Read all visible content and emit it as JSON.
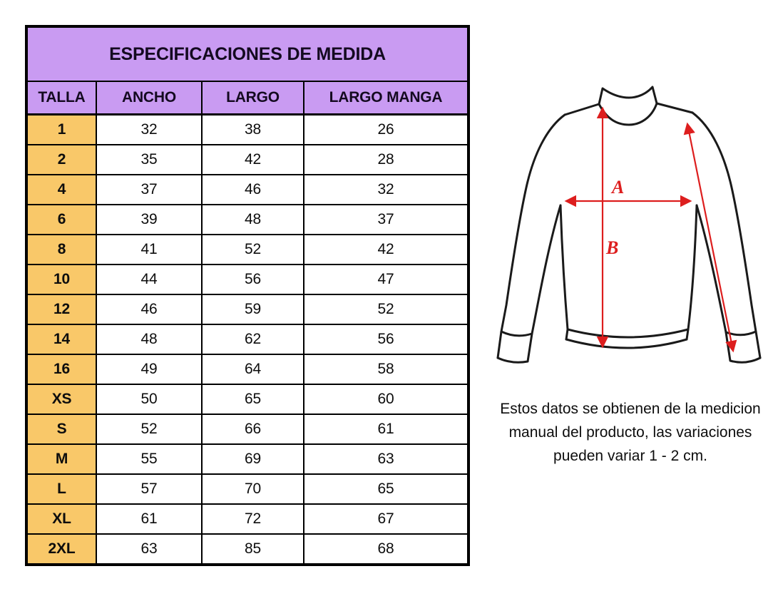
{
  "colors": {
    "header_purple": "#c99bf2",
    "size_column_orange": "#f9c869",
    "arrow_red": "#dd1e1e",
    "border_black": "#000000"
  },
  "table": {
    "title": "ESPECIFICACIONES DE MEDIDA",
    "headers": [
      "TALLA",
      "ANCHO",
      "LARGO",
      "LARGO MANGA"
    ],
    "rows": [
      {
        "talla": "1",
        "ancho": "32",
        "largo": "38",
        "manga": "26"
      },
      {
        "talla": "2",
        "ancho": "35",
        "largo": "42",
        "manga": "28"
      },
      {
        "talla": "4",
        "ancho": "37",
        "largo": "46",
        "manga": "32"
      },
      {
        "talla": "6",
        "ancho": "39",
        "largo": "48",
        "manga": "37"
      },
      {
        "talla": "8",
        "ancho": "41",
        "largo": "52",
        "manga": "42"
      },
      {
        "talla": "10",
        "ancho": "44",
        "largo": "56",
        "manga": "47"
      },
      {
        "talla": "12",
        "ancho": "46",
        "largo": "59",
        "manga": "52"
      },
      {
        "talla": "14",
        "ancho": "48",
        "largo": "62",
        "manga": "56"
      },
      {
        "talla": "16",
        "ancho": "49",
        "largo": "64",
        "manga": "58"
      },
      {
        "talla": "XS",
        "ancho": "50",
        "largo": "65",
        "manga": "60"
      },
      {
        "talla": "S",
        "ancho": "52",
        "largo": "66",
        "manga": "61"
      },
      {
        "talla": "M",
        "ancho": "55",
        "largo": "69",
        "manga": "63"
      },
      {
        "talla": "L",
        "ancho": "57",
        "largo": "70",
        "manga": "65"
      },
      {
        "talla": "XL",
        "ancho": "61",
        "largo": "72",
        "manga": "67"
      },
      {
        "talla": "2XL",
        "ancho": "63",
        "largo": "85",
        "manga": "68"
      }
    ]
  },
  "diagram": {
    "label_a": "A",
    "label_b": "B"
  },
  "note": {
    "lines": [
      "Estos datos se obtienen de la medicion",
      "manual del producto, las variaciones",
      "pueden variar 1 - 2 cm."
    ]
  },
  "chart_data": {
    "type": "table",
    "title": "ESPECIFICACIONES DE MEDIDA",
    "columns": [
      "TALLA",
      "ANCHO",
      "LARGO",
      "LARGO MANGA"
    ],
    "rows": [
      [
        "1",
        32,
        38,
        26
      ],
      [
        "2",
        35,
        42,
        28
      ],
      [
        "4",
        37,
        46,
        32
      ],
      [
        "6",
        39,
        48,
        37
      ],
      [
        "8",
        41,
        52,
        42
      ],
      [
        "10",
        44,
        56,
        47
      ],
      [
        "12",
        46,
        59,
        52
      ],
      [
        "14",
        48,
        62,
        56
      ],
      [
        "16",
        49,
        64,
        58
      ],
      [
        "XS",
        50,
        65,
        60
      ],
      [
        "S",
        52,
        66,
        61
      ],
      [
        "M",
        55,
        69,
        63
      ],
      [
        "L",
        57,
        70,
        65
      ],
      [
        "XL",
        61,
        72,
        67
      ],
      [
        "2XL",
        63,
        85,
        68
      ]
    ],
    "units": "cm",
    "diagram_measure_labels": [
      "A",
      "B"
    ],
    "note": "Estos datos se obtienen de la medicion manual del producto, las variaciones pueden variar 1 - 2 cm."
  }
}
